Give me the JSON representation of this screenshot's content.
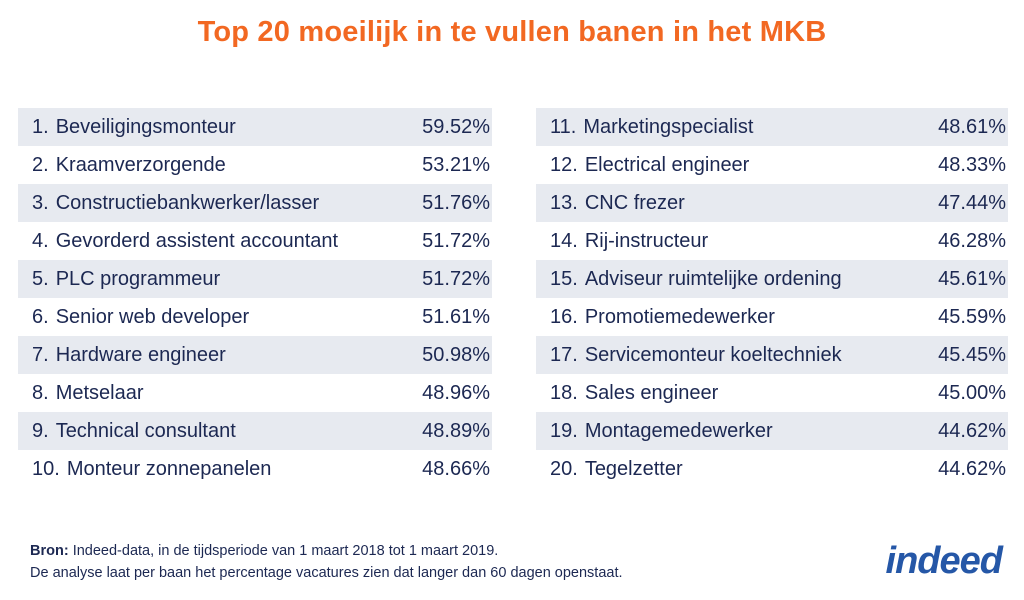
{
  "title": "Top 20 moeilijk in te vullen banen in het MKB",
  "left_rows": [
    {
      "rank": "1.",
      "name": "Beveiligingsmonteur",
      "pct": "59.52%"
    },
    {
      "rank": "2.",
      "name": "Kraamverzorgende",
      "pct": "53.21%"
    },
    {
      "rank": "3.",
      "name": "Constructiebankwerker/lasser",
      "pct": "51.76%"
    },
    {
      "rank": "4.",
      "name": "Gevorderd assistent accountant",
      "pct": "51.72%"
    },
    {
      "rank": "5.",
      "name": "PLC programmeur",
      "pct": "51.72%"
    },
    {
      "rank": "6.",
      "name": "Senior web developer",
      "pct": "51.61%"
    },
    {
      "rank": "7.",
      "name": "Hardware engineer",
      "pct": "50.98%"
    },
    {
      "rank": "8.",
      "name": "Metselaar",
      "pct": "48.96%"
    },
    {
      "rank": "9.",
      "name": "Technical consultant",
      "pct": "48.89%"
    },
    {
      "rank": "10.",
      "name": "Monteur zonnepanelen",
      "pct": "48.66%"
    }
  ],
  "right_rows": [
    {
      "rank": "11.",
      "name": "Marketingspecialist",
      "pct": "48.61%"
    },
    {
      "rank": "12.",
      "name": "Electrical engineer",
      "pct": "48.33%"
    },
    {
      "rank": "13.",
      "name": "CNC frezer",
      "pct": "47.44%"
    },
    {
      "rank": "14.",
      "name": "Rij-instructeur",
      "pct": "46.28%"
    },
    {
      "rank": "15.",
      "name": "Adviseur ruimtelijke ordening",
      "pct": "45.61%"
    },
    {
      "rank": "16.",
      "name": "Promotiemedewerker",
      "pct": "45.59%"
    },
    {
      "rank": "17.",
      "name": "Servicemonteur koeltechniek",
      "pct": "45.45%"
    },
    {
      "rank": "18.",
      "name": "Sales engineer",
      "pct": "45.00%"
    },
    {
      "rank": "19.",
      "name": "Montagemedewerker",
      "pct": "44.62%"
    },
    {
      "rank": "20.",
      "name": "Tegelzetter",
      "pct": "44.62%"
    }
  ],
  "footer": {
    "source_label": "Bron:",
    "source_text": " Indeed-data, in de tijdsperiode van 1 maart 2018 tot 1 maart 2019.",
    "note": "De analyse laat per baan het percentage vacatures zien dat langer dan 60 dagen openstaat."
  },
  "logo": "indeed",
  "colors": {
    "title": "#f26822",
    "text": "#1c2852",
    "row_shade": "#e7eaf0",
    "logo": "#2557a7"
  }
}
